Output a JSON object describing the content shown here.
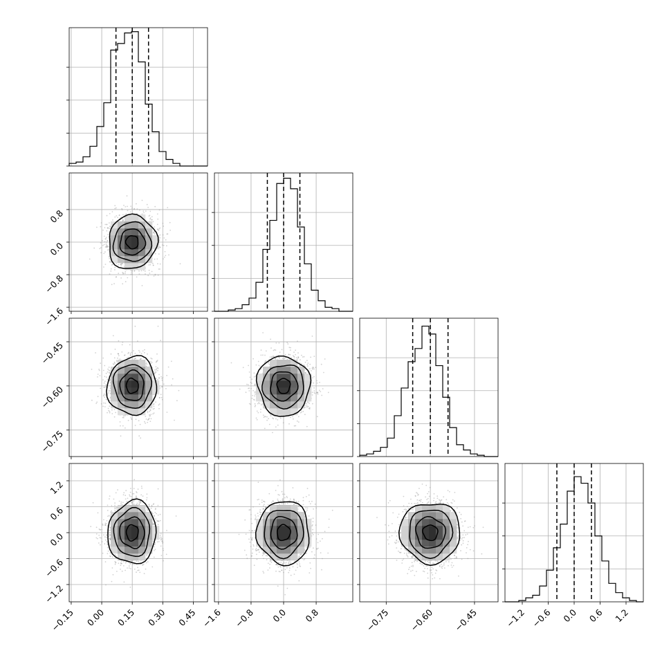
{
  "chart_data": {
    "type": "corner",
    "grid": true,
    "parameters": [
      {
        "index": 0,
        "range": [
          -0.16,
          0.52
        ],
        "ticks": [
          -0.15,
          0.0,
          0.15,
          0.3,
          0.45
        ],
        "tick_labels": [
          "−0.15",
          "0.00",
          "0.15",
          "0.30",
          "0.45"
        ],
        "quantiles": [
          0.07,
          0.15,
          0.23
        ],
        "hist_bin_start": -0.16,
        "hist_bin_width": 0.034,
        "hist_counts": [
          2,
          3,
          7,
          15,
          30,
          48,
          88,
          93,
          101,
          102,
          79,
          47,
          26,
          11,
          5,
          2,
          0,
          0,
          0,
          0
        ]
      },
      {
        "index": 1,
        "range": [
          -1.7,
          1.7
        ],
        "ticks": [
          -1.6,
          -0.8,
          0.0,
          0.8
        ],
        "tick_labels": [
          "−1.6",
          "−0.8",
          "0.0",
          "0.8"
        ],
        "quantiles": [
          -0.4,
          0.0,
          0.4
        ],
        "hist_bin_start": -1.7,
        "hist_bin_width": 0.17,
        "hist_counts": [
          0,
          0,
          1,
          2,
          5,
          10,
          22,
          47,
          69,
          97,
          101,
          93,
          64,
          36,
          16,
          8,
          3,
          2,
          0,
          0
        ]
      },
      {
        "index": 2,
        "range": [
          -0.84,
          -0.37
        ],
        "ticks": [
          -0.75,
          -0.6,
          -0.45
        ],
        "tick_labels": [
          "−0.75",
          "−0.60",
          "−0.45"
        ],
        "quantiles": [
          -0.66,
          -0.6,
          -0.54
        ],
        "hist_bin_start": -0.84,
        "hist_bin_width": 0.0235,
        "hist_counts": [
          1,
          2,
          4,
          7,
          14,
          31,
          52,
          72,
          82,
          99,
          93,
          69,
          45,
          22,
          9,
          5,
          2,
          1,
          0,
          0
        ]
      },
      {
        "index": 3,
        "range": [
          -1.6,
          1.6
        ],
        "ticks": [
          -1.2,
          -0.6,
          0.0,
          0.6,
          1.2
        ],
        "tick_labels": [
          "−1.2",
          "−0.6",
          "0.0",
          "0.6",
          "1.2"
        ],
        "quantiles": [
          -0.4,
          0.0,
          0.4
        ],
        "hist_bin_start": -1.6,
        "hist_bin_width": 0.16,
        "hist_counts": [
          0,
          0,
          1,
          3,
          5,
          12,
          24,
          41,
          59,
          84,
          95,
          90,
          75,
          50,
          31,
          14,
          7,
          3,
          1,
          0
        ]
      }
    ],
    "marginal_hist_max": 105,
    "joint": {
      "means": [
        0.15,
        0.0,
        -0.6,
        0.0
      ],
      "sigmas": [
        0.06,
        0.33,
        0.05,
        0.36
      ],
      "correlation": 0.0,
      "contour_levels_sigma": [
        0.5,
        1.0,
        1.5,
        2.0
      ]
    }
  }
}
